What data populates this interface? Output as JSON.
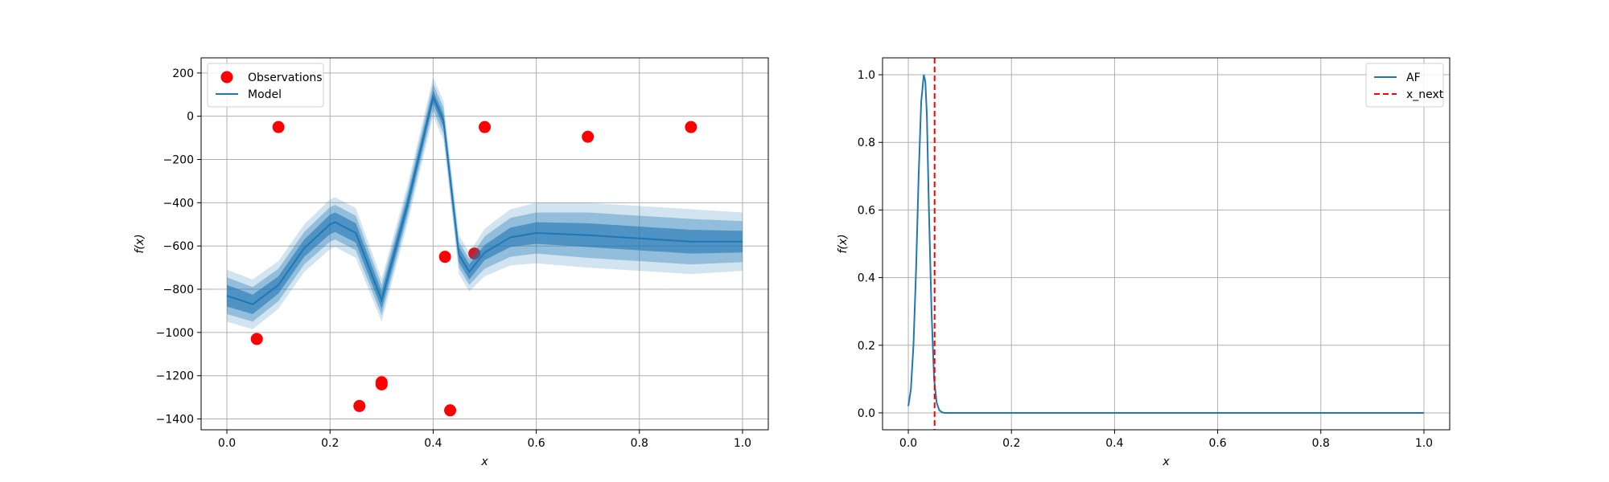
{
  "chart_data": [
    {
      "type": "scatter",
      "panel": "left",
      "title": "",
      "xlabel": "x",
      "ylabel": "f(x)",
      "xlim": [
        -0.05,
        1.05
      ],
      "ylim": [
        -1450,
        270
      ],
      "xticks": [
        0.0,
        0.2,
        0.4,
        0.6,
        0.8,
        1.0
      ],
      "xtick_labels": [
        "0.0",
        "0.2",
        "0.4",
        "0.6",
        "0.8",
        "1.0"
      ],
      "yticks": [
        200,
        0,
        -200,
        -400,
        -600,
        -800,
        -1000,
        -1200,
        -1400
      ],
      "ytick_labels": [
        "200",
        "0",
        "−200",
        "−400",
        "−600",
        "−800",
        "−1000",
        "−1200",
        "−1400"
      ],
      "grid": true,
      "legend_position": "top-left",
      "series": [
        {
          "name": "Observations",
          "kind": "scatter",
          "color": "#ff0000",
          "x": [
            0.058,
            0.1,
            0.257,
            0.3,
            0.3,
            0.423,
            0.433,
            0.48,
            0.5,
            0.7,
            0.9
          ],
          "y": [
            -1030,
            -50,
            -1340,
            -1230,
            -1240,
            -650,
            -1360,
            -635,
            -50,
            -95,
            -50
          ]
        },
        {
          "name": "Model",
          "kind": "line",
          "color": "#1f77b4",
          "x": [
            0.0,
            0.05,
            0.1,
            0.15,
            0.2,
            0.21,
            0.25,
            0.3,
            0.35,
            0.4,
            0.42,
            0.45,
            0.47,
            0.5,
            0.55,
            0.6,
            0.7,
            0.8,
            0.9,
            1.0
          ],
          "y": [
            -830,
            -870,
            -780,
            -610,
            -500,
            -490,
            -540,
            -850,
            -410,
            90,
            -20,
            -640,
            -720,
            -630,
            -560,
            -540,
            -550,
            -565,
            -580,
            -580
          ],
          "uncertainty_bands": [
            {
              "color": "#1f77b4",
              "opacity": 0.6,
              "halfwidth": [
                50,
                45,
                40,
                40,
                45,
                45,
                45,
                40,
                35,
                30,
                30,
                35,
                35,
                35,
                45,
                50,
                55,
                55,
                55,
                50
              ]
            },
            {
              "color": "#1f77b4",
              "opacity": 0.35,
              "halfwidth": [
                85,
                80,
                75,
                75,
                80,
                80,
                80,
                70,
                60,
                60,
                60,
                60,
                60,
                75,
                90,
                95,
                105,
                105,
                105,
                95
              ]
            },
            {
              "color": "#1f77b4",
              "opacity": 0.2,
              "halfwidth": [
                120,
                115,
                110,
                110,
                115,
                115,
                115,
                100,
                90,
                90,
                90,
                90,
                90,
                110,
                130,
                140,
                150,
                150,
                150,
                135
              ]
            }
          ]
        }
      ]
    },
    {
      "type": "line",
      "panel": "right",
      "title": "",
      "xlabel": "x",
      "ylabel": "f(x)",
      "xlim": [
        -0.05,
        1.05
      ],
      "ylim": [
        -0.05,
        1.05
      ],
      "xticks": [
        0.0,
        0.2,
        0.4,
        0.6,
        0.8,
        1.0
      ],
      "xtick_labels": [
        "0.0",
        "0.2",
        "0.4",
        "0.6",
        "0.8",
        "1.0"
      ],
      "yticks": [
        0.0,
        0.2,
        0.4,
        0.6,
        0.8,
        1.0
      ],
      "ytick_labels": [
        "0.0",
        "0.2",
        "0.4",
        "0.6",
        "0.8",
        "1.0"
      ],
      "grid": true,
      "legend_position": "top-right",
      "series": [
        {
          "name": "AF",
          "kind": "line",
          "color": "#1f77b4",
          "x": [
            0.0,
            0.005,
            0.01,
            0.015,
            0.02,
            0.025,
            0.03,
            0.033,
            0.036,
            0.04,
            0.045,
            0.05,
            0.055,
            0.06,
            0.065,
            0.07,
            0.08,
            0.1,
            0.2,
            0.4,
            0.6,
            0.8,
            1.0
          ],
          "y": [
            0.02,
            0.07,
            0.2,
            0.42,
            0.7,
            0.92,
            1.0,
            0.98,
            0.88,
            0.6,
            0.3,
            0.1,
            0.03,
            0.008,
            0.002,
            0.0,
            0.0,
            0.0,
            0.0,
            0.0,
            0.0,
            0.0,
            0.0
          ]
        },
        {
          "name": "x_next",
          "kind": "vline",
          "color": "#ff0000",
          "linestyle": "dashed",
          "x": 0.051
        }
      ]
    }
  ]
}
